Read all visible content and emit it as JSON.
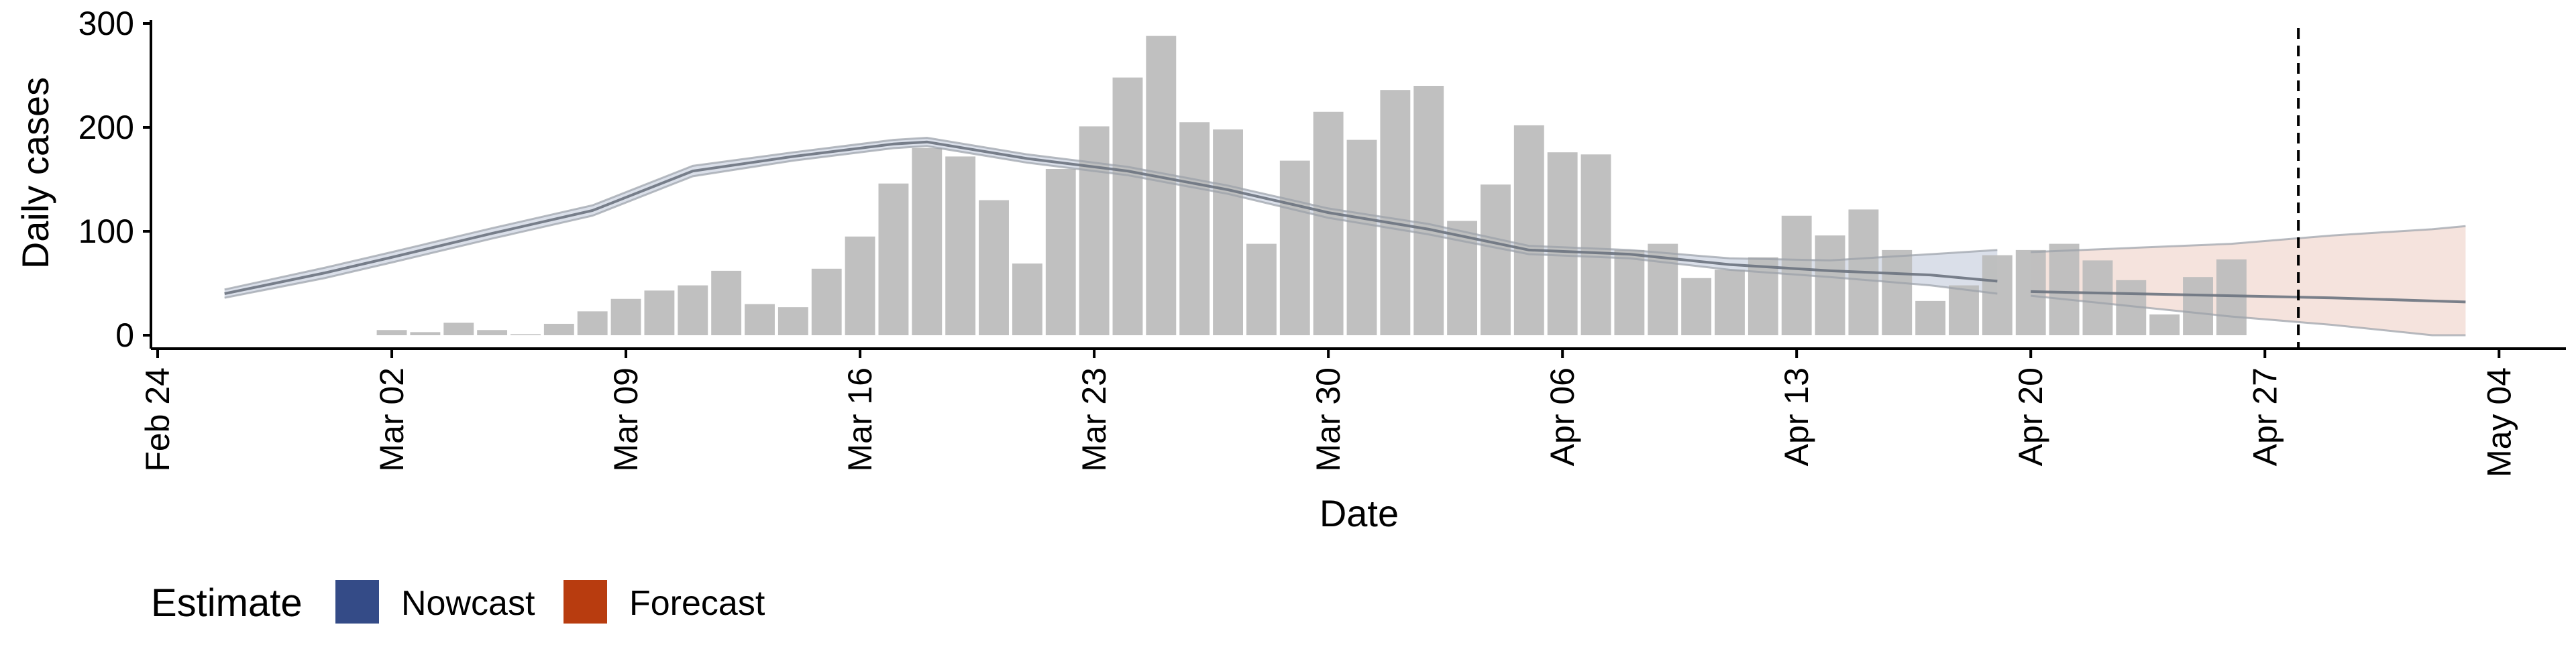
{
  "chart_data": {
    "type": "bar",
    "xlabel": "Date",
    "ylabel": "Daily cases",
    "ylim": [
      0,
      300
    ],
    "y_ticks": [
      "0",
      "100",
      "200",
      "300"
    ],
    "x_ticks": [
      "Feb 24",
      "Mar 02",
      "Mar 09",
      "Mar 16",
      "Mar 23",
      "Mar 30",
      "Apr 06",
      "Apr 13",
      "Apr 20",
      "Apr 27",
      "May 04"
    ],
    "x_tick_dates": [
      "2020-02-24",
      "2020-03-02",
      "2020-03-09",
      "2020-03-16",
      "2020-03-23",
      "2020-03-30",
      "2020-04-06",
      "2020-04-13",
      "2020-04-20",
      "2020-04-27",
      "2020-05-04"
    ],
    "x_range": [
      "2020-02-24",
      "2020-05-06"
    ],
    "grid": false,
    "bar_color": "#bdbdbd",
    "line_color": "#6b7380",
    "vline": {
      "date": "2020-04-28",
      "style": "dashed"
    },
    "bars": {
      "dates": [
        "2020-03-02",
        "2020-03-03",
        "2020-03-04",
        "2020-03-05",
        "2020-03-06",
        "2020-03-07",
        "2020-03-08",
        "2020-03-09",
        "2020-03-10",
        "2020-03-11",
        "2020-03-12",
        "2020-03-13",
        "2020-03-14",
        "2020-03-15",
        "2020-03-16",
        "2020-03-17",
        "2020-03-18",
        "2020-03-19",
        "2020-03-20",
        "2020-03-21",
        "2020-03-22",
        "2020-03-23",
        "2020-03-24",
        "2020-03-25",
        "2020-03-26",
        "2020-03-27",
        "2020-03-28",
        "2020-03-29",
        "2020-03-30",
        "2020-03-31",
        "2020-04-01",
        "2020-04-02",
        "2020-04-03",
        "2020-04-04",
        "2020-04-05",
        "2020-04-06",
        "2020-04-07",
        "2020-04-08",
        "2020-04-09",
        "2020-04-10",
        "2020-04-11",
        "2020-04-12",
        "2020-04-13",
        "2020-04-14",
        "2020-04-15",
        "2020-04-16",
        "2020-04-17",
        "2020-04-18",
        "2020-04-19",
        "2020-04-20",
        "2020-04-21",
        "2020-04-22",
        "2020-04-23",
        "2020-04-24",
        "2020-04-25",
        "2020-04-26",
        "2020-04-27",
        "2020-04-28"
      ],
      "values": [
        5,
        3,
        12,
        5,
        1,
        11,
        23,
        35,
        43,
        48,
        62,
        30,
        27,
        64,
        95,
        146,
        180,
        172,
        130,
        69,
        160,
        201,
        248,
        288,
        205,
        198,
        88,
        168,
        215,
        188,
        236,
        240,
        110,
        145,
        202,
        176,
        174,
        82,
        88,
        55,
        63,
        75,
        115,
        96,
        121,
        82,
        33,
        48,
        77,
        82,
        88,
        72,
        53,
        20,
        56,
        73,
        0,
        0
      ]
    },
    "series": [
      {
        "name": "Nowcast",
        "color": "#344b87",
        "dates": [
          "2020-02-26",
          "2020-02-29",
          "2020-03-02",
          "2020-03-05",
          "2020-03-08",
          "2020-03-11",
          "2020-03-14",
          "2020-03-17",
          "2020-03-18",
          "2020-03-21",
          "2020-03-24",
          "2020-03-27",
          "2020-03-30",
          "2020-04-02",
          "2020-04-05",
          "2020-04-08",
          "2020-04-11",
          "2020-04-14",
          "2020-04-17",
          "2020-04-19"
        ],
        "median": [
          40,
          60,
          75,
          98,
          120,
          158,
          172,
          184,
          186,
          170,
          158,
          140,
          118,
          102,
          82,
          78,
          68,
          62,
          58,
          52
        ],
        "lower": [
          36,
          55,
          70,
          93,
          115,
          153,
          168,
          180,
          182,
          166,
          154,
          136,
          113,
          97,
          78,
          74,
          63,
          56,
          48,
          40
        ],
        "upper": [
          44,
          65,
          80,
          103,
          125,
          163,
          176,
          188,
          190,
          174,
          162,
          144,
          122,
          107,
          86,
          82,
          74,
          72,
          78,
          82
        ]
      },
      {
        "name": "Forecast",
        "color": "#b83c0f",
        "dates": [
          "2020-04-20",
          "2020-04-23",
          "2020-04-26",
          "2020-04-29",
          "2020-05-02",
          "2020-05-03"
        ],
        "median": [
          42,
          40,
          38,
          36,
          33,
          32
        ],
        "lower": [
          38,
          28,
          18,
          10,
          0,
          0
        ],
        "upper": [
          80,
          84,
          88,
          96,
          102,
          105
        ]
      }
    ]
  },
  "legend": {
    "title": "Estimate",
    "items": [
      {
        "label": "Nowcast",
        "color": "#344b87"
      },
      {
        "label": "Forecast",
        "color": "#b83c0f"
      }
    ]
  }
}
